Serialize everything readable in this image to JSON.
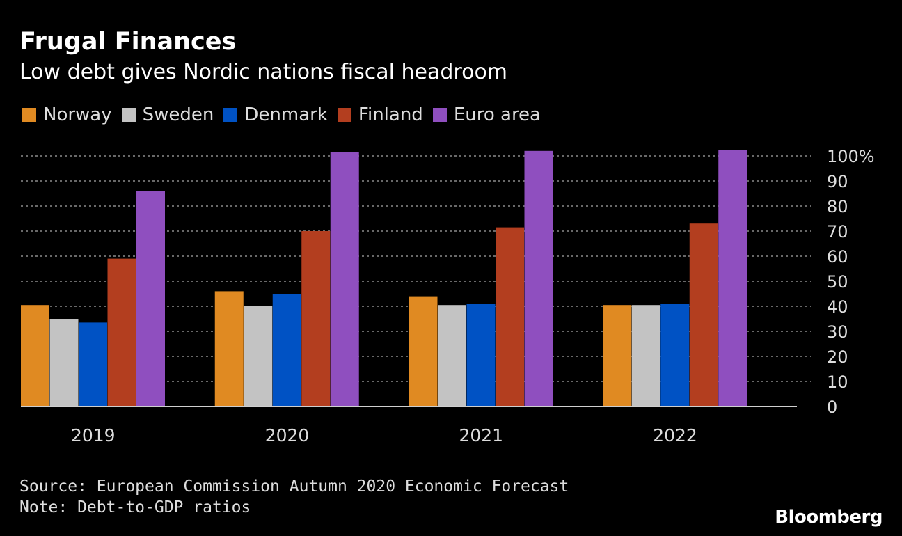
{
  "header": {
    "title": "Frugal Finances",
    "subtitle": "Low debt gives Nordic nations fiscal headroom"
  },
  "footer": {
    "source": "Source: European Commission Autumn 2020 Economic Forecast",
    "note": "Note: Debt-to-GDP ratios",
    "brand": "Bloomberg"
  },
  "chart_data": {
    "type": "bar",
    "title": "Frugal Finances",
    "subtitle": "Low debt gives Nordic nations fiscal headroom",
    "xlabel": "",
    "ylabel": "",
    "categories": [
      "2019",
      "2020",
      "2021",
      "2022"
    ],
    "ylim": [
      0,
      100
    ],
    "yticks": [
      0,
      10,
      20,
      30,
      40,
      50,
      60,
      70,
      80,
      90,
      100
    ],
    "ytick_labels": [
      "0",
      "10",
      "20",
      "30",
      "40",
      "50",
      "60",
      "70",
      "80",
      "90",
      "100%"
    ],
    "grid": true,
    "legend_position": "top-left",
    "y_axis_side": "right",
    "series": [
      {
        "name": "Norway",
        "color": "#E08A22",
        "values": [
          40.5,
          46,
          44,
          40.5
        ]
      },
      {
        "name": "Sweden",
        "color": "#C3C3C3",
        "values": [
          35,
          40,
          40.5,
          40.5
        ]
      },
      {
        "name": "Denmark",
        "color": "#0052C4",
        "values": [
          33.5,
          45,
          41,
          41
        ]
      },
      {
        "name": "Finland",
        "color": "#B33E1F",
        "values": [
          59,
          70,
          71.5,
          73
        ]
      },
      {
        "name": "Euro area",
        "color": "#8F4FBF",
        "values": [
          86,
          101.5,
          102,
          102.5
        ]
      }
    ]
  }
}
